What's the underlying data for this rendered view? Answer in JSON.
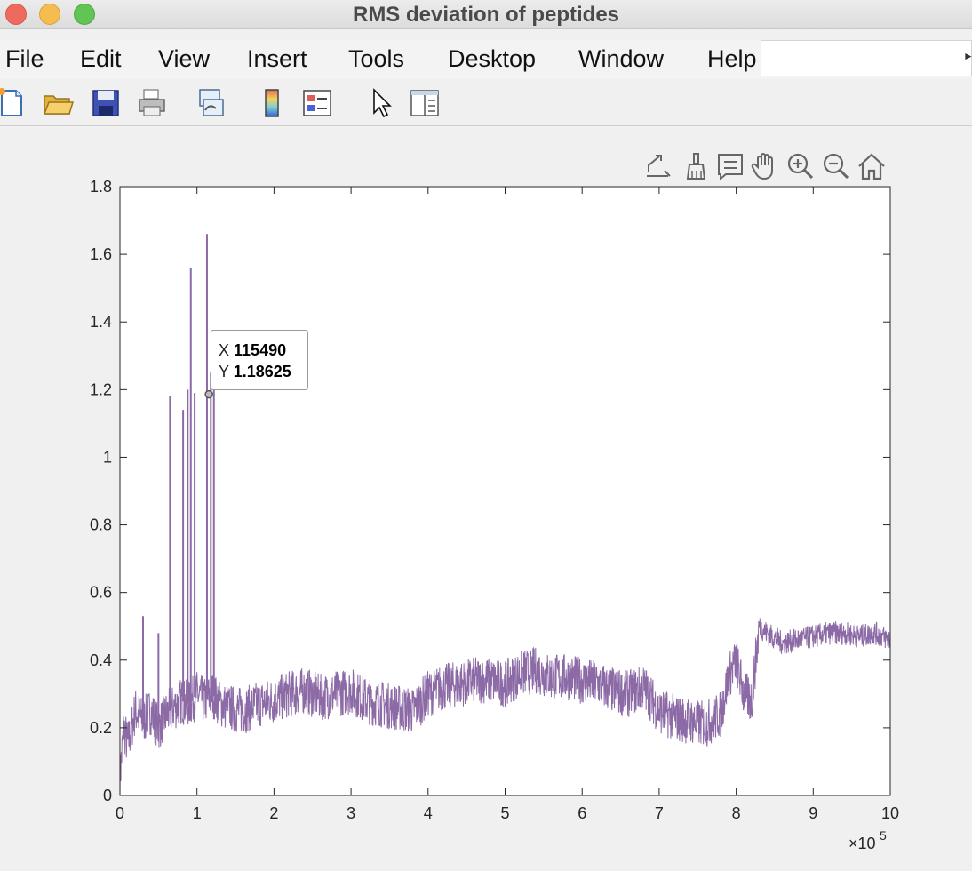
{
  "window": {
    "title": "RMS deviation of peptides"
  },
  "menu": {
    "items": [
      "File",
      "Edit",
      "View",
      "Insert",
      "Tools",
      "Desktop",
      "Window",
      "Help"
    ]
  },
  "toolbar": {
    "icons": [
      "new-figure-icon",
      "open-file-icon",
      "save-icon",
      "print-icon",
      "link-plot-icon",
      "insert-colorbar-icon",
      "insert-legend-icon",
      "edit-plot-pointer-icon",
      "property-inspector-icon"
    ]
  },
  "axes_toolbar": {
    "icons": [
      "export-icon",
      "brush-icon",
      "data-tips-icon",
      "pan-hand-icon",
      "zoom-in-icon",
      "zoom-out-icon",
      "restore-view-home-icon"
    ]
  },
  "datatip": {
    "x_label": "X",
    "x_value": "115490",
    "y_label": "Y",
    "y_value": "1.18625"
  },
  "chart_data": {
    "type": "line",
    "title": "",
    "xlabel": "",
    "ylabel": "",
    "xlim": [
      0,
      1000000
    ],
    "ylim": [
      0,
      1.8
    ],
    "x_ticks": [
      0,
      1,
      2,
      3,
      4,
      5,
      6,
      7,
      8,
      9,
      10
    ],
    "y_ticks": [
      "0",
      "0.2",
      "0.4",
      "0.6",
      "0.8",
      "1",
      "1.2",
      "1.4",
      "1.6",
      "1.8"
    ],
    "x_exponent_label": "×10",
    "x_exponent_power": "5",
    "grid": false,
    "line_color": "#8c6aa6",
    "series": [
      {
        "x": [
          0,
          5000,
          10000,
          20000,
          30000,
          40000,
          50000,
          60000,
          70000,
          80000,
          90000,
          100000,
          110000,
          120000,
          130000,
          140000,
          160000,
          180000,
          200000,
          220000,
          240000,
          260000,
          280000,
          300000,
          320000,
          340000,
          360000,
          380000,
          400000,
          420000,
          440000,
          460000,
          480000,
          500000,
          520000,
          540000,
          560000,
          580000,
          600000,
          620000,
          640000,
          660000,
          680000,
          700000,
          720000,
          740000,
          760000,
          780000,
          790000,
          800000,
          810000,
          820000,
          830000,
          840000,
          860000,
          880000,
          900000,
          920000,
          940000,
          960000,
          980000,
          1000000
        ],
        "y": [
          0.05,
          0.2,
          0.15,
          0.25,
          0.22,
          0.25,
          0.2,
          0.24,
          0.26,
          0.28,
          0.27,
          0.3,
          0.28,
          0.3,
          0.27,
          0.26,
          0.25,
          0.27,
          0.28,
          0.3,
          0.31,
          0.29,
          0.3,
          0.31,
          0.28,
          0.27,
          0.26,
          0.25,
          0.3,
          0.32,
          0.33,
          0.34,
          0.34,
          0.33,
          0.36,
          0.37,
          0.35,
          0.35,
          0.34,
          0.33,
          0.31,
          0.3,
          0.32,
          0.25,
          0.23,
          0.22,
          0.21,
          0.24,
          0.35,
          0.4,
          0.3,
          0.28,
          0.5,
          0.48,
          0.45,
          0.46,
          0.47,
          0.48,
          0.48,
          0.47,
          0.48,
          0.46
        ],
        "spikes": [
          {
            "x": 65000,
            "y": 1.18
          },
          {
            "x": 82000,
            "y": 1.14
          },
          {
            "x": 88000,
            "y": 1.2
          },
          {
            "x": 92000,
            "y": 1.56
          },
          {
            "x": 97000,
            "y": 1.19
          },
          {
            "x": 113000,
            "y": 1.66
          },
          {
            "x": 118000,
            "y": 1.25
          },
          {
            "x": 122000,
            "y": 1.2
          },
          {
            "x": 30000,
            "y": 0.53
          },
          {
            "x": 50000,
            "y": 0.48
          }
        ]
      }
    ]
  }
}
